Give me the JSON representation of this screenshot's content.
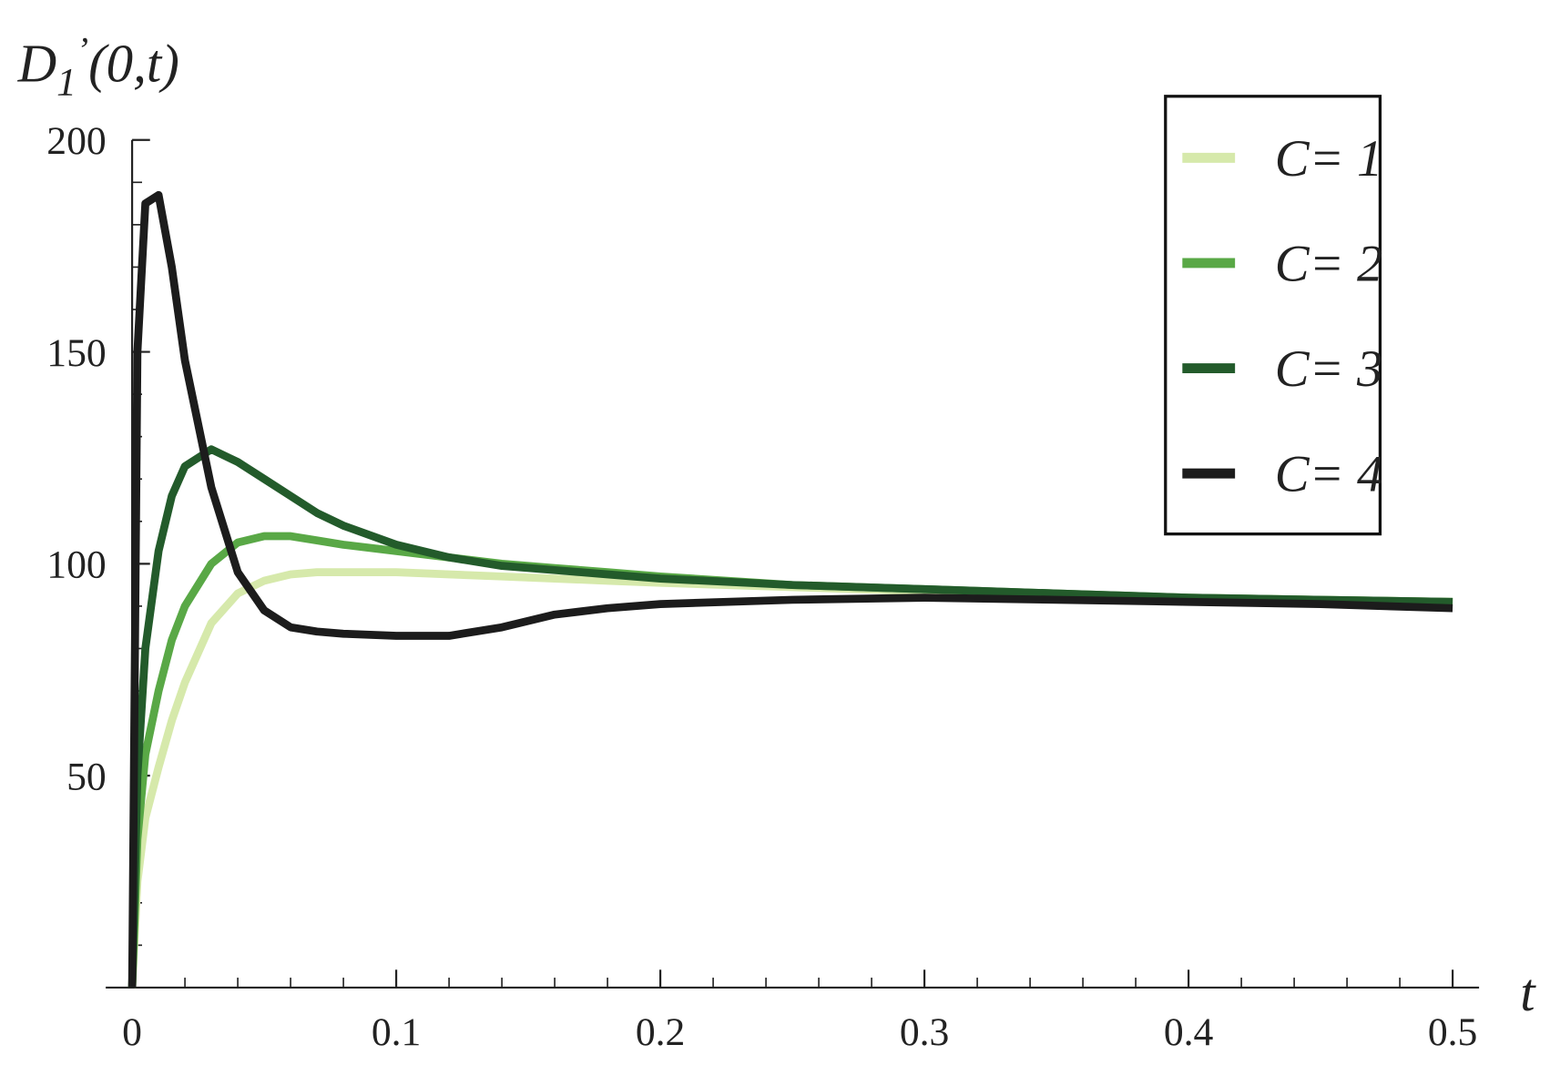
{
  "chart_data": {
    "type": "line",
    "x_label": "t",
    "y_label": {
      "base": "D",
      "sub": "1",
      "sup": "’",
      "arg": "(0,t)"
    },
    "x": [
      0,
      0.002,
      0.005,
      0.01,
      0.015,
      0.02,
      0.03,
      0.04,
      0.05,
      0.06,
      0.07,
      0.08,
      0.1,
      0.12,
      0.14,
      0.16,
      0.18,
      0.2,
      0.25,
      0.3,
      0.35,
      0.4,
      0.45,
      0.5
    ],
    "series": [
      {
        "name": "C= 1",
        "color": "#d6e9ab",
        "values": [
          0,
          25,
          40,
          52,
          63,
          72,
          86,
          93,
          96,
          97.5,
          98,
          98,
          98,
          97.5,
          97,
          96.5,
          96,
          95.5,
          94.5,
          93.5,
          92.7,
          92,
          91.5,
          91
        ]
      },
      {
        "name": "C= 2",
        "color": "#59a846",
        "values": [
          0,
          35,
          55,
          70,
          82,
          90,
          100,
          105,
          106.5,
          106.5,
          105.5,
          104.5,
          103,
          101.5,
          100,
          99,
          98,
          97,
          95,
          94,
          93,
          92,
          91.5,
          91
        ]
      },
      {
        "name": "C= 3",
        "color": "#235b2b",
        "values": [
          0,
          50,
          80,
          103,
          116,
          123,
          127,
          124,
          120,
          116,
          112,
          109,
          104.5,
          101.5,
          99.5,
          98.5,
          97.5,
          96.5,
          95,
          94,
          93,
          92,
          91.5,
          91
        ]
      },
      {
        "name": "C= 4",
        "color": "#1c1c1c",
        "values": [
          0,
          150,
          185,
          187,
          170,
          148,
          118,
          98,
          89,
          85,
          84,
          83.5,
          83,
          83,
          85,
          88,
          89.5,
          90.5,
          91.5,
          92,
          91.5,
          91,
          90.5,
          89.5
        ]
      }
    ],
    "xlim": [
      -0.01,
      0.51
    ],
    "ylim": [
      0,
      200
    ],
    "xticks": [
      0,
      0.1,
      0.2,
      0.3,
      0.4,
      0.5
    ],
    "xminorticks": [
      0.02,
      0.04,
      0.06,
      0.08,
      0.12,
      0.14,
      0.16,
      0.18,
      0.22,
      0.24,
      0.26,
      0.28,
      0.32,
      0.34,
      0.36,
      0.38,
      0.42,
      0.44,
      0.46,
      0.48
    ],
    "yticks": [
      50,
      100,
      150,
      200
    ],
    "yminorticks": [
      10,
      20,
      30,
      40,
      60,
      70,
      80,
      90,
      110,
      120,
      130,
      140,
      160,
      170,
      180,
      190
    ],
    "legend": "upper right"
  }
}
